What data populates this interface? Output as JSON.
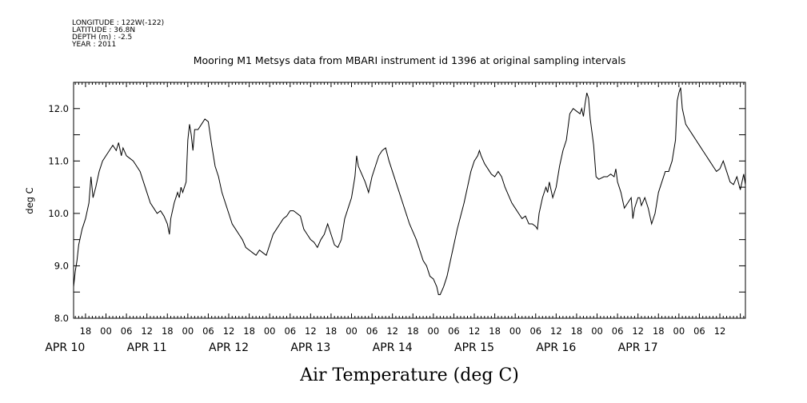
{
  "header": {
    "lines": [
      "LONGITUDE : 122W(-122)",
      "LATITUDE : 36.8N",
      "DEPTH (m) : -2.5",
      "YEAR : 2011"
    ]
  },
  "chart_data": {
    "type": "line",
    "title": "Mooring M1 Metsys data from MBARI instrument id 1396 at original sampling intervals",
    "xlabel": "Air Temperature (deg C)",
    "ylabel": "deg C",
    "ylim": [
      8.0,
      12.5
    ],
    "xlim_hours": [
      14.5,
      211.5
    ],
    "x_reference": "APR 10 00:00",
    "y_ticks": [
      "8.0",
      "9.0",
      "10.0",
      "11.0",
      "12.0"
    ],
    "x_hour_ticks": [
      {
        "h": 18,
        "label": "18"
      },
      {
        "h": 24,
        "label": "00"
      },
      {
        "h": 30,
        "label": "06"
      },
      {
        "h": 36,
        "label": "12"
      },
      {
        "h": 42,
        "label": "18"
      },
      {
        "h": 48,
        "label": "00"
      },
      {
        "h": 54,
        "label": "06"
      },
      {
        "h": 60,
        "label": "12"
      },
      {
        "h": 66,
        "label": "18"
      },
      {
        "h": 72,
        "label": "00"
      },
      {
        "h": 78,
        "label": "06"
      },
      {
        "h": 84,
        "label": "12"
      },
      {
        "h": 90,
        "label": "18"
      },
      {
        "h": 96,
        "label": "00"
      },
      {
        "h": 102,
        "label": "06"
      },
      {
        "h": 108,
        "label": "12"
      },
      {
        "h": 114,
        "label": "18"
      },
      {
        "h": 120,
        "label": "00"
      },
      {
        "h": 126,
        "label": "06"
      },
      {
        "h": 132,
        "label": "12"
      },
      {
        "h": 138,
        "label": "18"
      },
      {
        "h": 144,
        "label": "00"
      },
      {
        "h": 150,
        "label": "06"
      },
      {
        "h": 156,
        "label": "12"
      },
      {
        "h": 162,
        "label": "18"
      },
      {
        "h": 168,
        "label": "00"
      },
      {
        "h": 174,
        "label": "06"
      },
      {
        "h": 180,
        "label": "12"
      },
      {
        "h": 186,
        "label": "18"
      },
      {
        "h": 192,
        "label": "00"
      },
      {
        "h": 198,
        "label": "06"
      },
      {
        "h": 204,
        "label": "12"
      }
    ],
    "x_day_labels": [
      {
        "h": 12,
        "label": "APR 10"
      },
      {
        "h": 36,
        "label": "APR 11"
      },
      {
        "h": 60,
        "label": "APR 12"
      },
      {
        "h": 84,
        "label": "APR 13"
      },
      {
        "h": 108,
        "label": "APR 14"
      },
      {
        "h": 132,
        "label": "APR 15"
      },
      {
        "h": 156,
        "label": "APR 16"
      },
      {
        "h": 180,
        "label": "APR 17"
      }
    ],
    "series": [
      {
        "points": [
          [
            14.5,
            8.6
          ],
          [
            15,
            8.9
          ],
          [
            15.5,
            9.1
          ],
          [
            16,
            9.4
          ],
          [
            17,
            9.7
          ],
          [
            18,
            9.9
          ],
          [
            19,
            10.2
          ],
          [
            19.6,
            10.7
          ],
          [
            20.2,
            10.3
          ],
          [
            21,
            10.5
          ],
          [
            22,
            10.8
          ],
          [
            23,
            11.0
          ],
          [
            24,
            11.1
          ],
          [
            25,
            11.2
          ],
          [
            26,
            11.3
          ],
          [
            27,
            11.2
          ],
          [
            27.7,
            11.35
          ],
          [
            28.5,
            11.1
          ],
          [
            29,
            11.25
          ],
          [
            30,
            11.1
          ],
          [
            31,
            11.05
          ],
          [
            32,
            11.0
          ],
          [
            33,
            10.9
          ],
          [
            34,
            10.8
          ],
          [
            35,
            10.6
          ],
          [
            36,
            10.4
          ],
          [
            37,
            10.2
          ],
          [
            38,
            10.1
          ],
          [
            39,
            10.0
          ],
          [
            40,
            10.05
          ],
          [
            41,
            9.95
          ],
          [
            42,
            9.8
          ],
          [
            42.6,
            9.6
          ],
          [
            43,
            9.9
          ],
          [
            44,
            10.2
          ],
          [
            45,
            10.4
          ],
          [
            45.5,
            10.3
          ],
          [
            46,
            10.5
          ],
          [
            46.5,
            10.4
          ],
          [
            47.5,
            10.6
          ],
          [
            48,
            11.4
          ],
          [
            48.5,
            11.7
          ],
          [
            49,
            11.5
          ],
          [
            49.5,
            11.2
          ],
          [
            50,
            11.6
          ],
          [
            51,
            11.6
          ],
          [
            52,
            11.7
          ],
          [
            53,
            11.8
          ],
          [
            54,
            11.75
          ],
          [
            55,
            11.3
          ],
          [
            56,
            10.9
          ],
          [
            57,
            10.7
          ],
          [
            58,
            10.4
          ],
          [
            59,
            10.2
          ],
          [
            60,
            10.0
          ],
          [
            61,
            9.8
          ],
          [
            62,
            9.7
          ],
          [
            63,
            9.6
          ],
          [
            64,
            9.5
          ],
          [
            65,
            9.35
          ],
          [
            66,
            9.3
          ],
          [
            67,
            9.25
          ],
          [
            68,
            9.2
          ],
          [
            69,
            9.3
          ],
          [
            70,
            9.25
          ],
          [
            71,
            9.2
          ],
          [
            72,
            9.4
          ],
          [
            73,
            9.6
          ],
          [
            74,
            9.7
          ],
          [
            75,
            9.8
          ],
          [
            76,
            9.9
          ],
          [
            77,
            9.95
          ],
          [
            78,
            10.05
          ],
          [
            79,
            10.05
          ],
          [
            80,
            10.0
          ],
          [
            81,
            9.95
          ],
          [
            82,
            9.7
          ],
          [
            83,
            9.6
          ],
          [
            84,
            9.5
          ],
          [
            85,
            9.45
          ],
          [
            86,
            9.35
          ],
          [
            87,
            9.5
          ],
          [
            88,
            9.6
          ],
          [
            89,
            9.8
          ],
          [
            90,
            9.6
          ],
          [
            91,
            9.4
          ],
          [
            92,
            9.35
          ],
          [
            93,
            9.5
          ],
          [
            94,
            9.9
          ],
          [
            95,
            10.1
          ],
          [
            96,
            10.3
          ],
          [
            97,
            10.7
          ],
          [
            97.5,
            11.1
          ],
          [
            98,
            10.9
          ],
          [
            99,
            10.75
          ],
          [
            100,
            10.6
          ],
          [
            101,
            10.4
          ],
          [
            102,
            10.7
          ],
          [
            103,
            10.9
          ],
          [
            104,
            11.1
          ],
          [
            105,
            11.2
          ],
          [
            106,
            11.25
          ],
          [
            107,
            11.0
          ],
          [
            108,
            10.8
          ],
          [
            109,
            10.6
          ],
          [
            110,
            10.4
          ],
          [
            111,
            10.2
          ],
          [
            112,
            10.0
          ],
          [
            113,
            9.8
          ],
          [
            114,
            9.65
          ],
          [
            115,
            9.5
          ],
          [
            116,
            9.3
          ],
          [
            117,
            9.1
          ],
          [
            118,
            9.0
          ],
          [
            119,
            8.8
          ],
          [
            120,
            8.75
          ],
          [
            121,
            8.6
          ],
          [
            121.5,
            8.45
          ],
          [
            122,
            8.45
          ],
          [
            123,
            8.6
          ],
          [
            124,
            8.8
          ],
          [
            125,
            9.1
          ],
          [
            126,
            9.4
          ],
          [
            127,
            9.7
          ],
          [
            128,
            9.95
          ],
          [
            129,
            10.2
          ],
          [
            130,
            10.5
          ],
          [
            131,
            10.8
          ],
          [
            132,
            11.0
          ],
          [
            133,
            11.1
          ],
          [
            133.5,
            11.2
          ],
          [
            134,
            11.1
          ],
          [
            135,
            10.95
          ],
          [
            136,
            10.85
          ],
          [
            137,
            10.75
          ],
          [
            138,
            10.7
          ],
          [
            139,
            10.8
          ],
          [
            140,
            10.7
          ],
          [
            141,
            10.5
          ],
          [
            142,
            10.35
          ],
          [
            143,
            10.2
          ],
          [
            144,
            10.1
          ],
          [
            145,
            10.0
          ],
          [
            146,
            9.9
          ],
          [
            147,
            9.95
          ],
          [
            148,
            9.8
          ],
          [
            149,
            9.8
          ],
          [
            150,
            9.75
          ],
          [
            150.5,
            9.7
          ],
          [
            151,
            10.0
          ],
          [
            152,
            10.3
          ],
          [
            153,
            10.5
          ],
          [
            153.5,
            10.4
          ],
          [
            154,
            10.6
          ],
          [
            155,
            10.3
          ],
          [
            156,
            10.5
          ],
          [
            157,
            10.9
          ],
          [
            158,
            11.2
          ],
          [
            159,
            11.4
          ],
          [
            160,
            11.9
          ],
          [
            161,
            12.0
          ],
          [
            162,
            11.95
          ],
          [
            163,
            11.9
          ],
          [
            163.5,
            12.0
          ],
          [
            164,
            11.85
          ],
          [
            164.5,
            12.1
          ],
          [
            165,
            12.3
          ],
          [
            165.5,
            12.2
          ],
          [
            166,
            11.8
          ],
          [
            167,
            11.3
          ],
          [
            167.7,
            10.7
          ],
          [
            168.5,
            10.65
          ],
          [
            170,
            10.7
          ],
          [
            171,
            10.7
          ],
          [
            172,
            10.75
          ],
          [
            173,
            10.7
          ],
          [
            173.5,
            10.85
          ],
          [
            174,
            10.6
          ],
          [
            175,
            10.4
          ],
          [
            176,
            10.1
          ],
          [
            177,
            10.2
          ],
          [
            178,
            10.3
          ],
          [
            178.5,
            9.9
          ],
          [
            179,
            10.1
          ],
          [
            180,
            10.3
          ],
          [
            180.5,
            10.3
          ],
          [
            181,
            10.15
          ],
          [
            182,
            10.3
          ],
          [
            183,
            10.1
          ],
          [
            184,
            9.8
          ],
          [
            185,
            10.0
          ],
          [
            186,
            10.4
          ],
          [
            187,
            10.6
          ],
          [
            188,
            10.8
          ],
          [
            189,
            10.8
          ],
          [
            190,
            11.0
          ],
          [
            191,
            11.4
          ],
          [
            191.5,
            12.15
          ],
          [
            192,
            12.3
          ],
          [
            192.5,
            12.4
          ],
          [
            193,
            12.0
          ],
          [
            194,
            11.7
          ],
          [
            195,
            11.6
          ],
          [
            196,
            11.5
          ],
          [
            197,
            11.4
          ],
          [
            198,
            11.3
          ],
          [
            199,
            11.2
          ],
          [
            200,
            11.1
          ],
          [
            201,
            11.0
          ],
          [
            202,
            10.9
          ],
          [
            203,
            10.8
          ],
          [
            204,
            10.85
          ],
          [
            205,
            11.0
          ],
          [
            206,
            10.8
          ],
          [
            207,
            10.6
          ],
          [
            208,
            10.55
          ],
          [
            209,
            10.7
          ],
          [
            210,
            10.45
          ],
          [
            211,
            10.75
          ],
          [
            211.5,
            10.55
          ]
        ]
      }
    ]
  }
}
